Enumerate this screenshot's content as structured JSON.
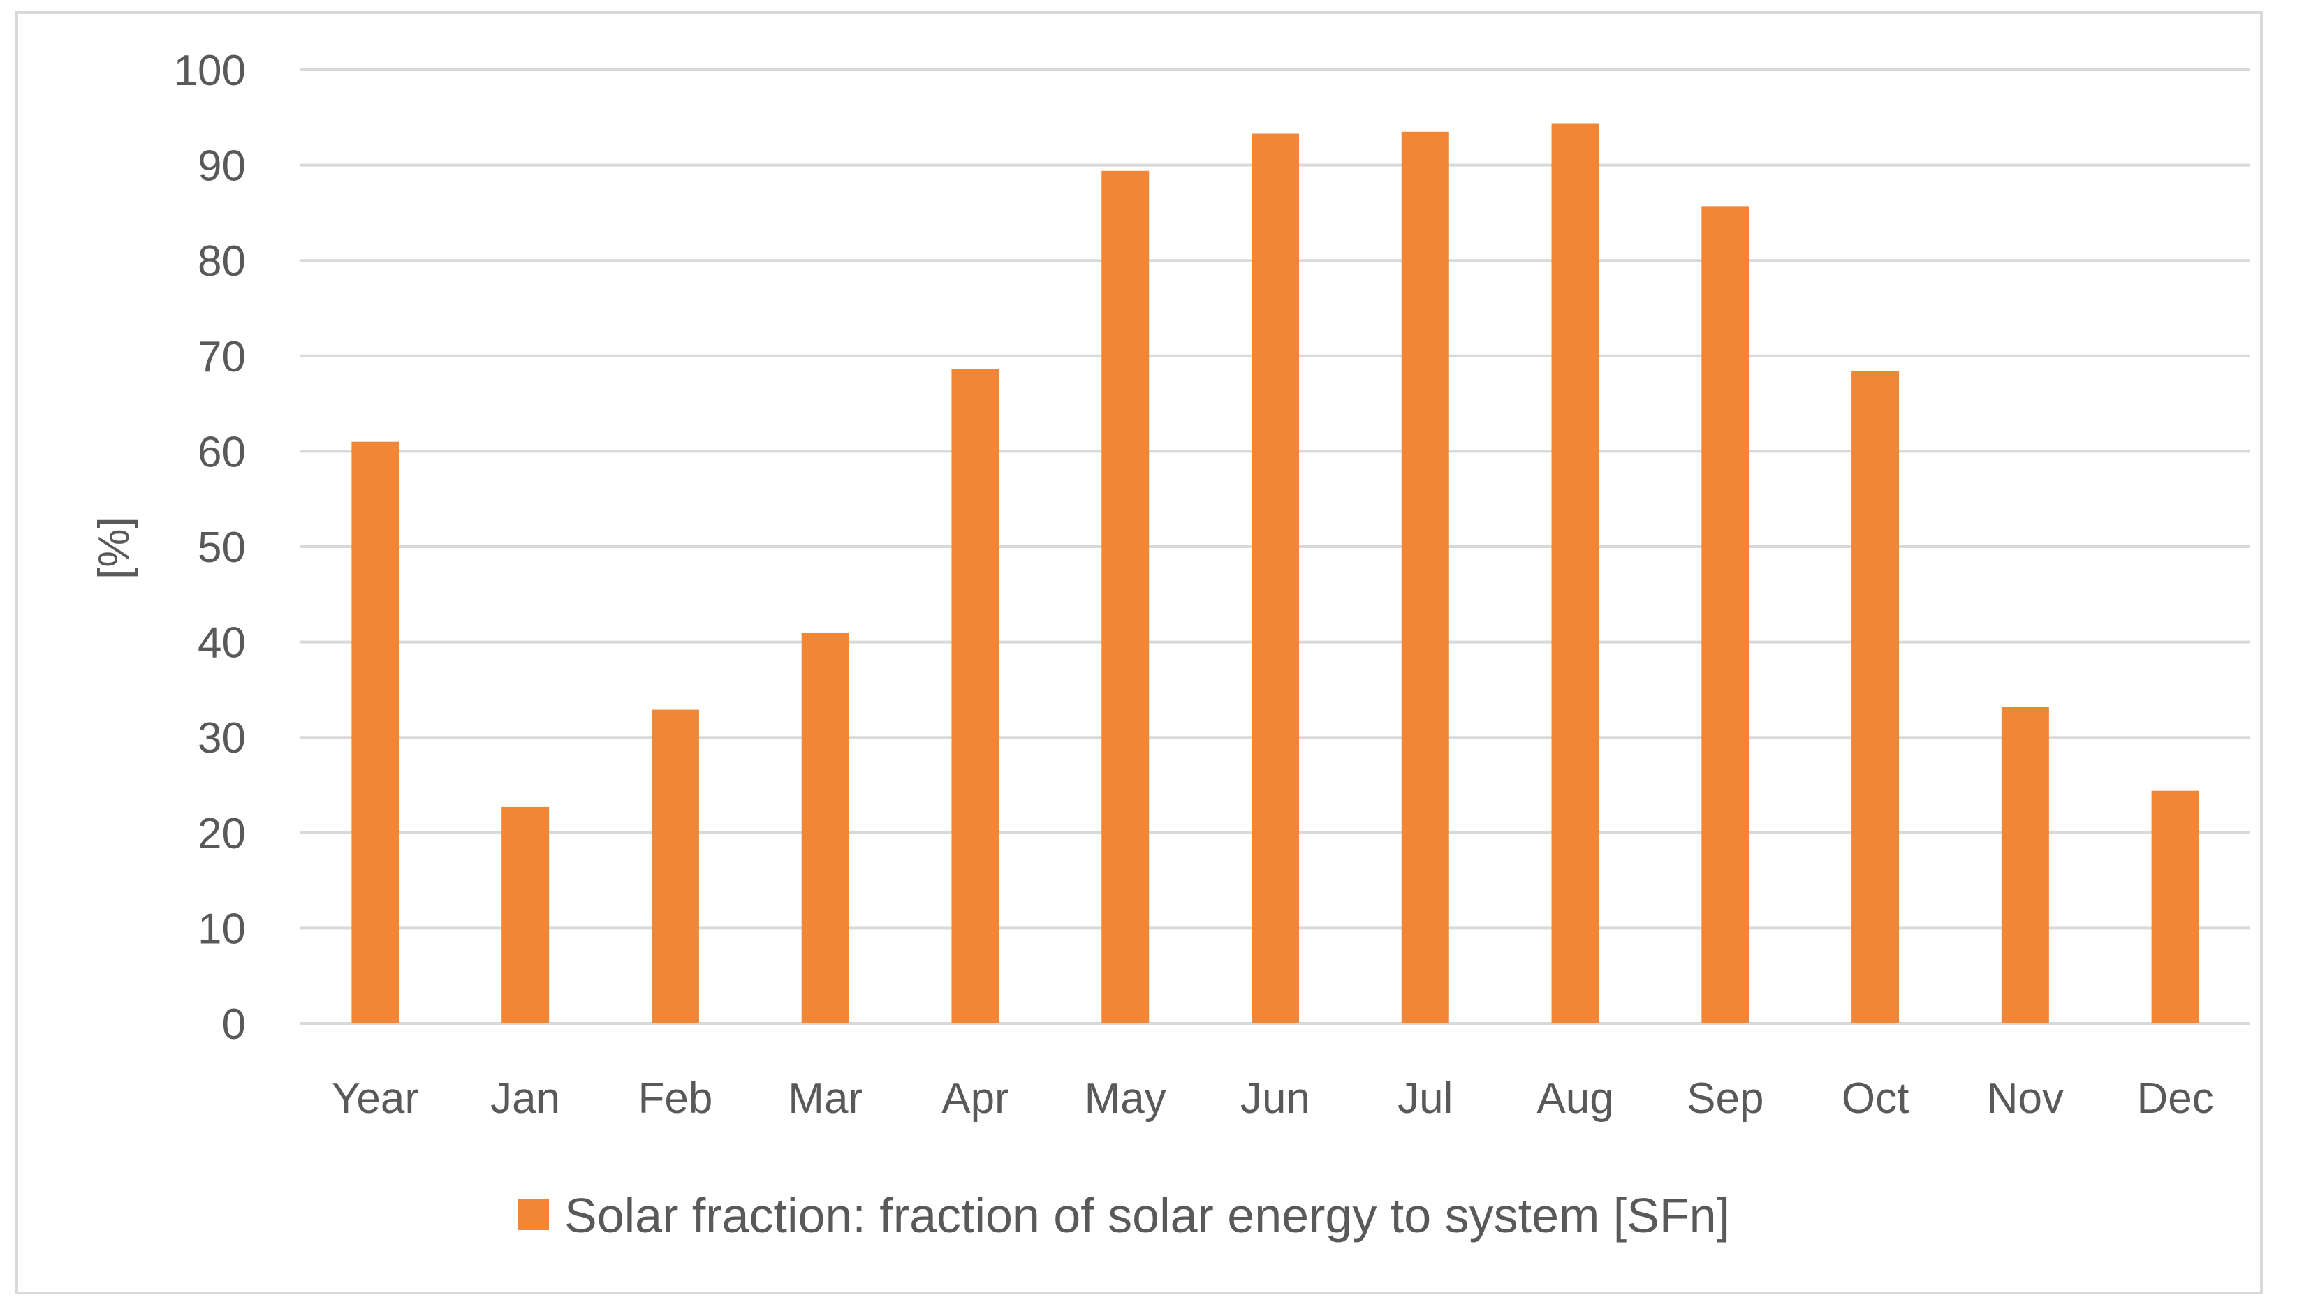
{
  "chart_data": {
    "type": "bar",
    "title": "",
    "xlabel": "",
    "ylabel": "[%]",
    "ylim": [
      0,
      100
    ],
    "yticks": [
      "0",
      "10",
      "20",
      "30",
      "40",
      "50",
      "60",
      "70",
      "80",
      "90",
      "100"
    ],
    "grid": true,
    "legend_position": "bottom",
    "categories": [
      "Year",
      "Jan",
      "Feb",
      "Mar",
      "Apr",
      "May",
      "Jun",
      "Jul",
      "Aug",
      "Sep",
      "Oct",
      "Nov",
      "Dec"
    ],
    "series": [
      {
        "name": "Solar fraction: fraction of solar energy to system [SFn]",
        "color": "#f28637",
        "values": [
          61,
          22.7,
          32.9,
          41,
          68.6,
          89.4,
          93.3,
          93.5,
          94.4,
          85.7,
          68.4,
          33.2,
          24.4
        ]
      }
    ],
    "colors": {
      "bar": "#f28637",
      "grid": "#d9d9d9",
      "text": "#595959",
      "frame": "#d9d9d9"
    }
  }
}
